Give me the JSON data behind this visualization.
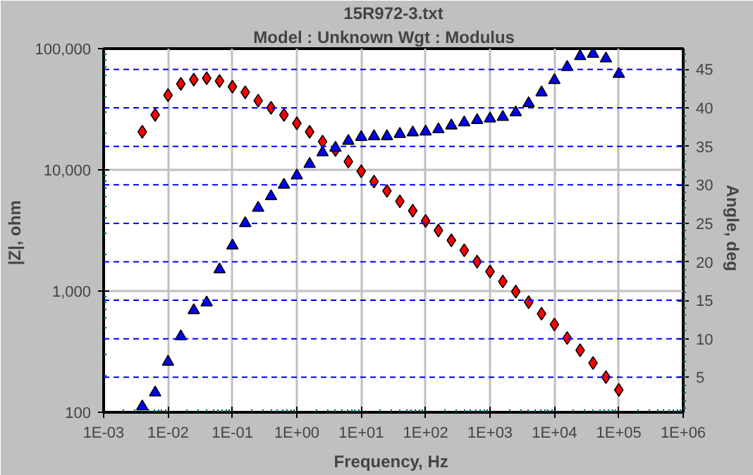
{
  "chart_data": {
    "type": "scatter",
    "title": "15R972-3.txt",
    "subtitle": "Model : Unknown     Wgt : Modulus",
    "xlabel": "Frequency,  Hz",
    "ylabel": "|Z|,  ohm",
    "y2label": "Angle,  deg",
    "log": "xy",
    "grid": true,
    "x": [
      0.00398,
      0.00631,
      0.01,
      0.0158,
      0.0251,
      0.0398,
      0.0631,
      0.1,
      0.158,
      0.251,
      0.398,
      0.631,
      1,
      1.58,
      2.51,
      3.98,
      6.31,
      10,
      15.8,
      25.1,
      39.8,
      63.1,
      100,
      158,
      251,
      398,
      631,
      1000,
      1580,
      2510,
      3980,
      6310,
      10000,
      15800,
      25100,
      39800,
      63100,
      100000
    ],
    "xlim": [
      0.001,
      1000000
    ],
    "xticks": [
      {
        "value": 0.001,
        "label": "1E-03"
      },
      {
        "value": 0.01,
        "label": "1E-02"
      },
      {
        "value": 0.1,
        "label": "1E-01"
      },
      {
        "value": 1,
        "label": "1E+00"
      },
      {
        "value": 10,
        "label": "1E+01"
      },
      {
        "value": 100,
        "label": "1E+02"
      },
      {
        "value": 1000,
        "label": "1E+03"
      },
      {
        "value": 10000,
        "label": "1E+04"
      },
      {
        "value": 100000,
        "label": "1E+05"
      },
      {
        "value": 1000000,
        "label": "1E+06"
      }
    ],
    "ylim": [
      100,
      100000
    ],
    "yticks": [
      100,
      {
        "value": 1000,
        "label": "1,000"
      },
      {
        "value": 10000,
        "label": "10,000"
      },
      {
        "value": 100000,
        "label": "100,000"
      }
    ],
    "y2lim": [
      0.45,
      47.7
    ],
    "y2ticks": [
      5,
      10,
      15,
      20,
      25,
      30,
      35,
      40,
      45
    ],
    "series": [
      {
        "color": "#ff0000",
        "marker": "diamond",
        "values": [
          20600,
          28400,
          41300,
          51200,
          55500,
          57000,
          54000,
          48500,
          43600,
          37200,
          32500,
          28400,
          24200,
          20600,
          17100,
          14600,
          11700,
          9730,
          8000,
          6700,
          5500,
          4600,
          3790,
          3160,
          2620,
          2170,
          1750,
          1450,
          1200,
          990,
          810,
          650,
          530,
          410,
          325,
          255,
          195,
          153
        ]
      },
      {
        "color": "#0000ff",
        "marker": "triangle",
        "axis": "y2",
        "values": [
          1.2,
          3.0,
          7.0,
          10.3,
          13.7,
          14.7,
          19.0,
          22.1,
          25.0,
          27.0,
          28.5,
          30.0,
          31.2,
          32.7,
          34.2,
          34.8,
          35.7,
          36.2,
          36.3,
          36.3,
          36.6,
          36.8,
          36.9,
          37.2,
          37.7,
          38.1,
          38.4,
          38.6,
          38.8,
          39.4,
          40.6,
          42.0,
          43.6,
          45.3,
          46.7,
          47.0,
          46.4,
          44.4
        ]
      }
    ]
  }
}
